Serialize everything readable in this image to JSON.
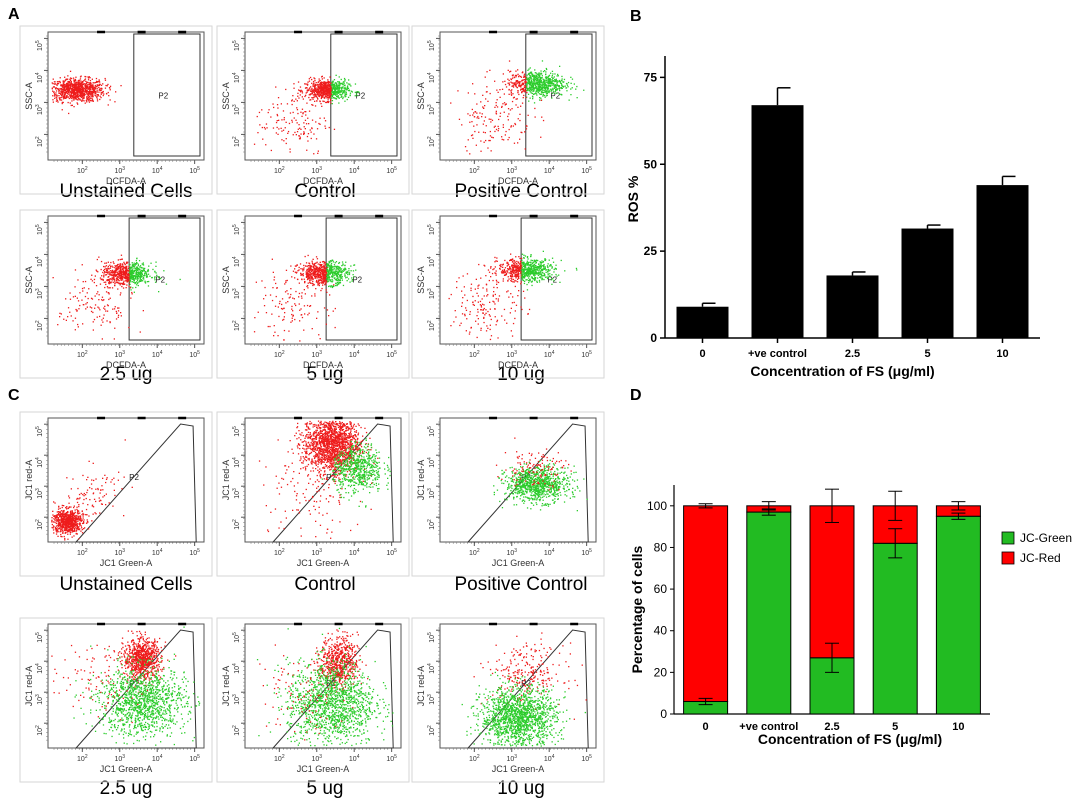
{
  "panel_labels": {
    "A": "A",
    "B": "B",
    "C": "C",
    "D": "D"
  },
  "panel_a": {
    "x_axis": "DCFDA-A",
    "y_axis": "SSC-A",
    "gate": "P2",
    "samples": [
      "Unstained Cells",
      "Control",
      "Positive Control",
      "2.5 ug",
      "5 ug",
      "10 ug"
    ]
  },
  "panel_c": {
    "x_axis": "JC1 Green-A",
    "y_axis": "JC1 red-A",
    "gate": "P2",
    "samples": [
      "Unstained Cells",
      "Control",
      "Positive Control",
      "2.5 ug",
      "5 ug",
      "10 ug"
    ]
  },
  "log_ticks": {
    "x": [
      "10^2",
      "10^3",
      "10^4",
      "10^5"
    ],
    "y": [
      "10^2",
      "10^3",
      "10^4",
      "10^5"
    ]
  },
  "colors": {
    "red": "#ee1c1c",
    "green": "#2ccc2c",
    "bar_black": "#000000",
    "jc_green": "#22bb22",
    "jc_red": "#ff0000"
  },
  "chart_data": [
    {
      "id": "B",
      "type": "bar",
      "categories": [
        "0",
        "+ve control",
        "2.5",
        "5",
        "10"
      ],
      "values": [
        9,
        67,
        18,
        31.5,
        44
      ],
      "errors": [
        1,
        5,
        1,
        1,
        2.5
      ],
      "ylabel": "ROS %",
      "xlabel": "Concentration of FS (μg/ml)",
      "ylim": [
        0,
        80
      ],
      "yticks": [
        "0",
        "25",
        "50",
        "75"
      ]
    },
    {
      "id": "D",
      "type": "bar",
      "stacked": true,
      "categories": [
        "0",
        "+ve control",
        "2.5",
        "5",
        "10"
      ],
      "series": [
        {
          "name": "JC-Green",
          "values": [
            6,
            97,
            27,
            82,
            95
          ],
          "errors": [
            1.5,
            1.5,
            7,
            7,
            1.5
          ]
        },
        {
          "name": "JC-Red",
          "values": [
            94,
            3,
            73,
            18,
            5
          ],
          "errors": [
            1,
            2,
            8,
            7,
            2
          ]
        }
      ],
      "ylabel": "Percentage of cells",
      "xlabel": "Concentration of FS (μg/ml)",
      "ylim": [
        0,
        110
      ],
      "yticks": [
        "0",
        "20",
        "40",
        "60",
        "80",
        "100"
      ]
    }
  ]
}
